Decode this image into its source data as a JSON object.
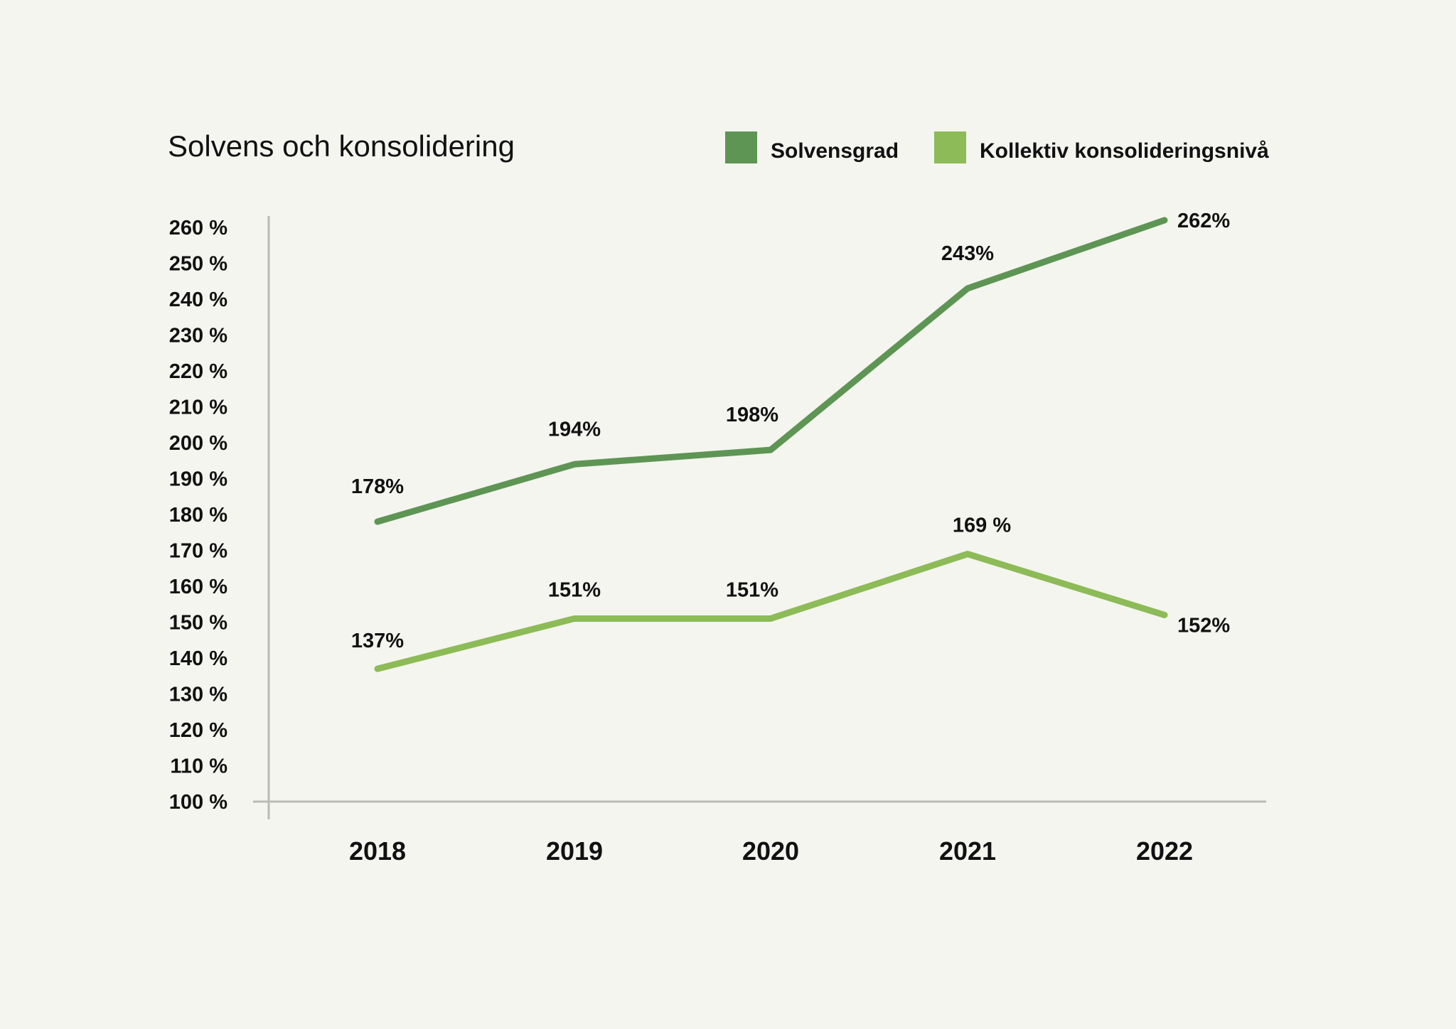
{
  "chart_data": {
    "type": "line",
    "title": "Solvens och konsolidering",
    "xlabel": "",
    "ylabel": "",
    "categories": [
      "2018",
      "2019",
      "2020",
      "2021",
      "2022"
    ],
    "ylim": [
      100,
      260
    ],
    "yticks": [
      100,
      110,
      120,
      130,
      140,
      150,
      160,
      170,
      180,
      190,
      200,
      210,
      220,
      230,
      240,
      250,
      260
    ],
    "ytick_labels": [
      "100 %",
      "110 %",
      "120 %",
      "130 %",
      "140 %",
      "150 %",
      "160 %",
      "170 %",
      "180 %",
      "190 %",
      "200 %",
      "210 %",
      "220 %",
      "230 %",
      "240 %",
      "250 %",
      "260 %"
    ],
    "grid": false,
    "legend_position": "top-right",
    "series": [
      {
        "name": "Solvensgrad",
        "color": "#5e9555",
        "values": [
          178,
          194,
          198,
          243,
          262
        ],
        "labels": [
          "178%",
          "194%",
          "198%",
          "243%",
          "262%"
        ]
      },
      {
        "name": "Kollektiv konsolideringsnivå",
        "color": "#8dbb57",
        "values": [
          137,
          151,
          151,
          169,
          152
        ],
        "labels": [
          "137%",
          "151%",
          "151%",
          "169 %",
          "152%"
        ]
      }
    ]
  }
}
